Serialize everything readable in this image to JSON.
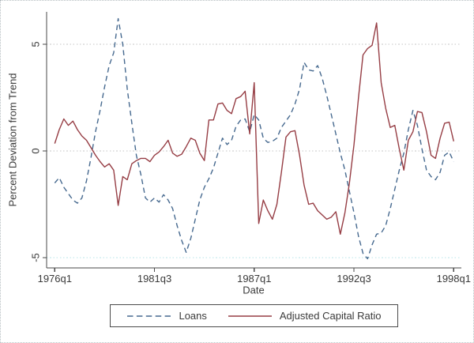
{
  "figure": {
    "background": "#ffffff",
    "border_style": "dotted light gray frame around whole image"
  },
  "chart_data": {
    "type": "line",
    "title": "",
    "xlabel": "Date",
    "ylabel": "Percent Deviation from Trend",
    "x_start": "1976q1",
    "x_end": "1998q1",
    "x_step": "quarterly",
    "x_tick_labels": [
      "1976q1",
      "1981q3",
      "1987q1",
      "1992q3",
      "1998q1"
    ],
    "x_tick_quarter_index": [
      0,
      22,
      44,
      66,
      88
    ],
    "y_tick_labels": [
      "-5",
      "0",
      "5"
    ],
    "y_tick_values": [
      -5,
      0,
      5
    ],
    "ylim": [
      -5.5,
      6.6
    ],
    "grid": "horizontal dotted gridlines at y ticks",
    "grid_color": "#c6c6c6",
    "grid_color_bottom": "#b9e6ea",
    "axis_color": "#4a4a4a",
    "text_color": "#3a3a3a",
    "legend_position": "bottom center",
    "series": [
      {
        "name": "Loans",
        "style": "dashed",
        "color": "#46698f",
        "values": [
          -1.5,
          -1.25,
          -1.7,
          -2.0,
          -2.3,
          -2.45,
          -2.2,
          -1.4,
          -0.3,
          0.9,
          1.9,
          3.0,
          4.0,
          4.6,
          6.2,
          5.0,
          2.9,
          1.3,
          -0.2,
          -1.1,
          -2.2,
          -2.4,
          -2.2,
          -2.4,
          -2.05,
          -2.3,
          -2.7,
          -3.5,
          -4.2,
          -4.75,
          -4.1,
          -3.2,
          -2.3,
          -1.7,
          -1.3,
          -0.8,
          -0.1,
          0.6,
          0.3,
          0.5,
          1.15,
          1.45,
          1.5,
          0.9,
          1.7,
          1.45,
          0.6,
          0.4,
          0.45,
          0.6,
          1.1,
          1.4,
          1.7,
          2.2,
          2.9,
          4.15,
          3.8,
          3.75,
          4.0,
          3.4,
          2.6,
          1.7,
          0.8,
          -0.1,
          -0.9,
          -1.9,
          -2.9,
          -4.0,
          -4.8,
          -5.05,
          -4.4,
          -3.9,
          -3.85,
          -3.5,
          -2.7,
          -1.8,
          -0.9,
          -0.1,
          1.0,
          1.9,
          1.2,
          0.1,
          -0.9,
          -1.2,
          -1.35,
          -1.0,
          -0.2,
          -0.05,
          -0.5
        ]
      },
      {
        "name": "Adjusted Capital Ratio",
        "style": "solid",
        "color": "#963d44",
        "values": [
          0.35,
          1.0,
          1.5,
          1.2,
          1.4,
          1.0,
          0.7,
          0.5,
          0.15,
          -0.2,
          -0.5,
          -0.75,
          -0.6,
          -0.9,
          -2.55,
          -1.2,
          -1.35,
          -0.6,
          -0.45,
          -0.35,
          -0.35,
          -0.5,
          -0.2,
          -0.05,
          0.2,
          0.5,
          -0.1,
          -0.25,
          -0.15,
          0.2,
          0.6,
          0.5,
          -0.1,
          -0.45,
          1.45,
          1.45,
          2.2,
          2.25,
          1.9,
          1.75,
          2.45,
          2.55,
          2.8,
          0.8,
          3.2,
          -3.4,
          -2.3,
          -2.8,
          -3.2,
          -2.5,
          -1.0,
          0.65,
          0.9,
          0.95,
          -0.2,
          -1.6,
          -2.5,
          -2.45,
          -2.8,
          -3.0,
          -3.2,
          -3.1,
          -2.85,
          -3.9,
          -2.9,
          -1.5,
          0.3,
          2.5,
          4.5,
          4.8,
          4.95,
          6.0,
          3.2,
          2.0,
          1.1,
          1.2,
          0.1,
          -0.9,
          0.5,
          0.9,
          1.85,
          1.8,
          0.9,
          -0.2,
          -0.35,
          0.6,
          1.3,
          1.35,
          0.45
        ]
      }
    ]
  }
}
